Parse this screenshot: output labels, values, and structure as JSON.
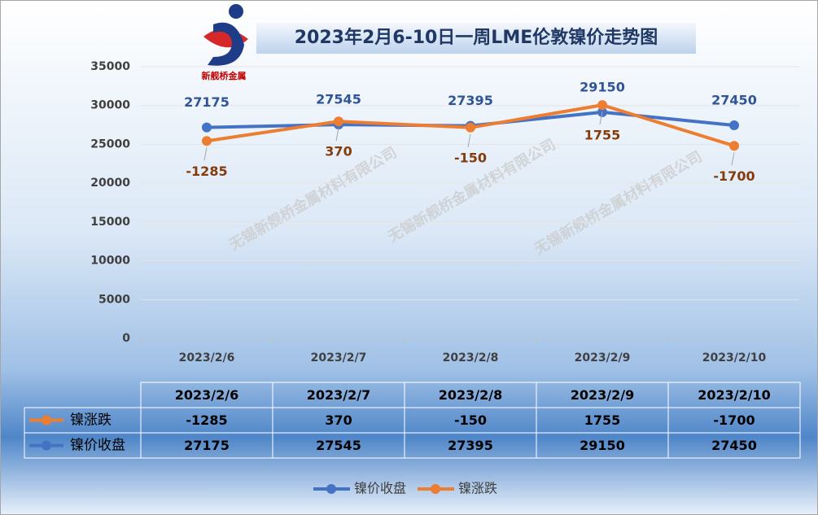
{
  "chart_data": {
    "type": "line",
    "title": "2023年2月6-10日一周LME伦敦镍价走势图",
    "logo_text": "新舰桥金属",
    "watermark": "无锡新舰桥金属材料有限公司",
    "categories": [
      "2023/2/6",
      "2023/2/7",
      "2023/2/8",
      "2023/2/9",
      "2023/2/10"
    ],
    "series": [
      {
        "name": "镍价收盘",
        "color": "#4472c4",
        "values": [
          27175,
          27545,
          27395,
          29150,
          27450
        ]
      },
      {
        "name": "镍涨跌",
        "color": "#ed7d31",
        "axis": "y2",
        "values": [
          -1285,
          370,
          -150,
          1755,
          -1700
        ]
      }
    ],
    "ylim": [
      0,
      35000
    ],
    "yticks": [
      0,
      5000,
      10000,
      15000,
      20000,
      25000,
      30000,
      35000
    ],
    "y2lim": [
      -18000,
      5000
    ],
    "grid": true,
    "legend": "bottom",
    "data_table": true
  }
}
